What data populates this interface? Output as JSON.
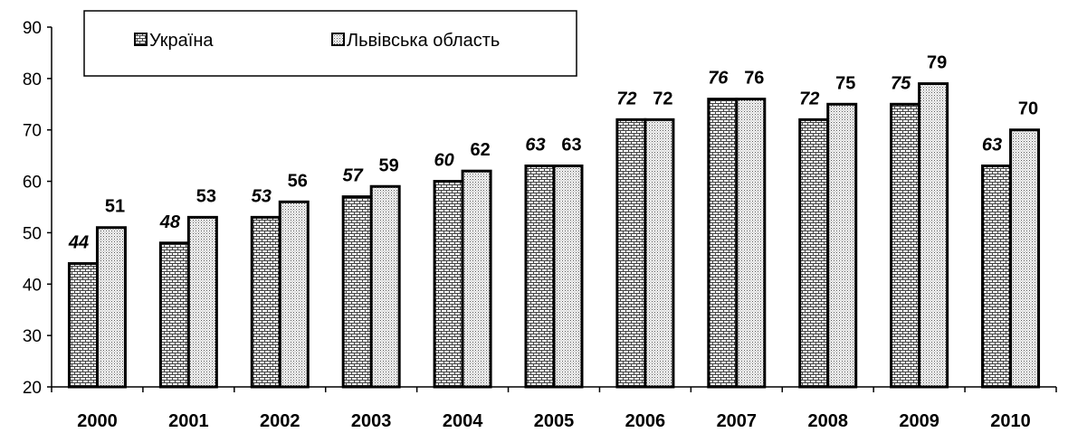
{
  "chart_data": {
    "type": "bar",
    "categories": [
      "2000",
      "2001",
      "2002",
      "2003",
      "2004",
      "2005",
      "2006",
      "2007",
      "2008",
      "2009",
      "2010"
    ],
    "series": [
      {
        "name": "Україна",
        "values": [
          44,
          48,
          53,
          57,
          60,
          63,
          72,
          76,
          72,
          75,
          63
        ],
        "pattern": "brick",
        "label_style": "bold-italic"
      },
      {
        "name": "Львівська область",
        "values": [
          51,
          53,
          56,
          59,
          62,
          63,
          72,
          76,
          75,
          79,
          70
        ],
        "pattern": "dots",
        "label_style": "bold"
      }
    ],
    "yticks": [
      "20",
      "30",
      "40",
      "50",
      "60",
      "70",
      "80",
      "90"
    ],
    "ylim": [
      20,
      90
    ],
    "grid": false,
    "legend_position": "top-left",
    "title": "",
    "xlabel": "",
    "ylabel": "",
    "colors": {
      "bar_fill": "#ffffff",
      "pattern": "#555555",
      "outline": "#000000"
    }
  }
}
